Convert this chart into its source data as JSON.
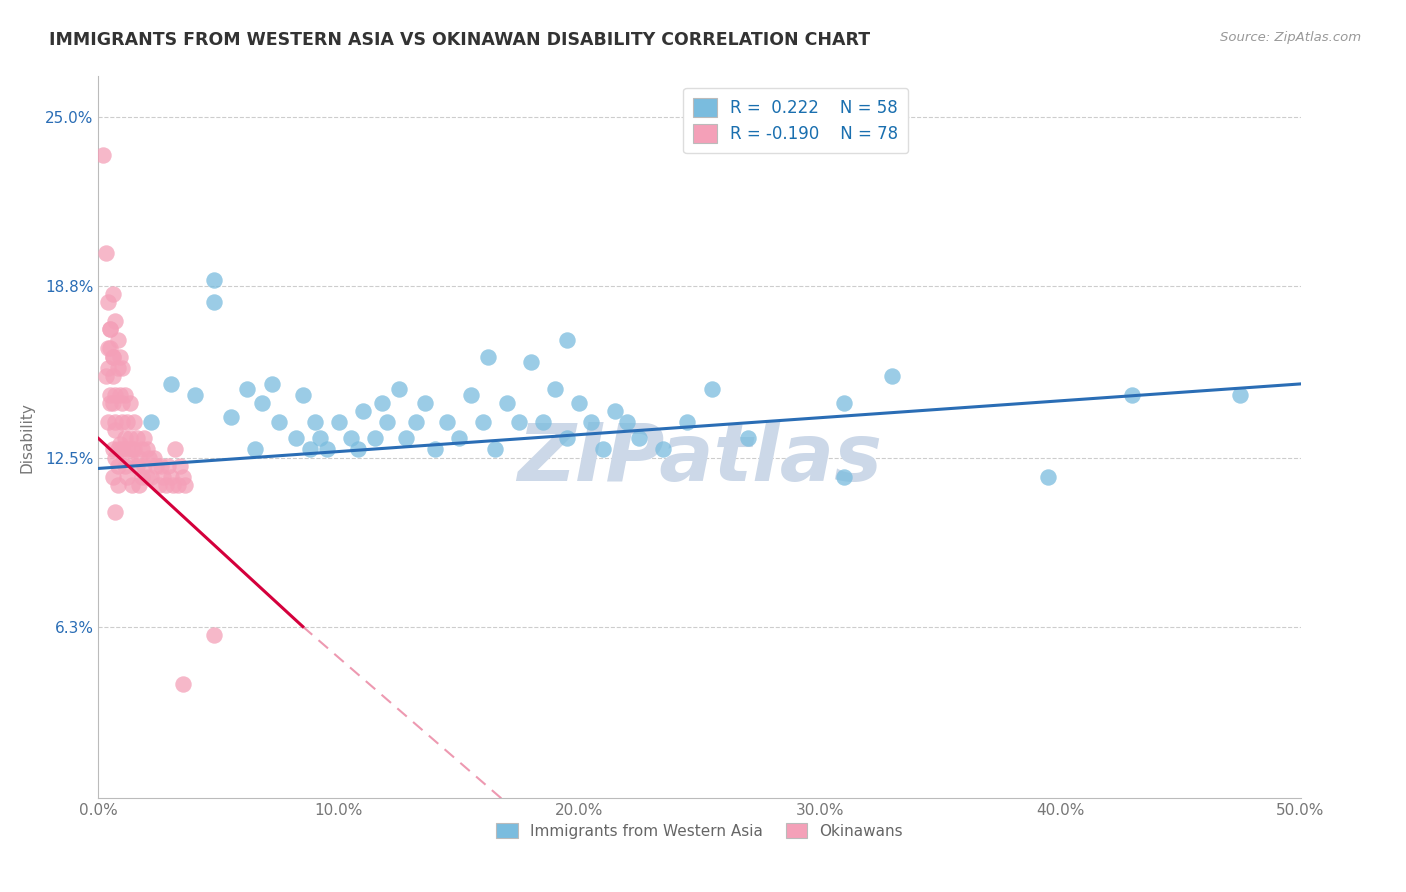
{
  "title": "IMMIGRANTS FROM WESTERN ASIA VS OKINAWAN DISABILITY CORRELATION CHART",
  "source": "Source: ZipAtlas.com",
  "xlabel_blue": "Immigrants from Western Asia",
  "xlabel_pink": "Okinawans",
  "ylabel": "Disability",
  "xmin": 0.0,
  "xmax": 0.5,
  "ymin": 0.0,
  "ymax": 0.265,
  "yticks": [
    0.063,
    0.125,
    0.188,
    0.25
  ],
  "ytick_labels": [
    "6.3%",
    "12.5%",
    "18.8%",
    "25.0%"
  ],
  "xticks": [
    0.0,
    0.1,
    0.2,
    0.3,
    0.4,
    0.5
  ],
  "xtick_labels": [
    "0.0%",
    "10.0%",
    "20.0%",
    "30.0%",
    "40.0%",
    "50.0%"
  ],
  "blue_color": "#7abcde",
  "pink_color": "#f4a0b8",
  "blue_line_color": "#2a6db5",
  "pink_line_color": "#d4003c",
  "pink_line_dash": [
    6,
    4
  ],
  "R_blue": 0.222,
  "N_blue": 58,
  "R_pink": -0.19,
  "N_pink": 78,
  "legend_R_color": "#1a6faf",
  "background_color": "#ffffff",
  "grid_color": "#c8c8c8",
  "watermark_text": "ZIPatlas",
  "watermark_color": "#ccd8e8",
  "blue_x": [
    0.022,
    0.03,
    0.04,
    0.048,
    0.048,
    0.055,
    0.062,
    0.065,
    0.068,
    0.072,
    0.075,
    0.082,
    0.085,
    0.088,
    0.09,
    0.092,
    0.095,
    0.1,
    0.105,
    0.108,
    0.11,
    0.115,
    0.118,
    0.12,
    0.125,
    0.128,
    0.132,
    0.136,
    0.14,
    0.145,
    0.15,
    0.155,
    0.16,
    0.165,
    0.17,
    0.175,
    0.18,
    0.185,
    0.19,
    0.195,
    0.2,
    0.205,
    0.21,
    0.215,
    0.22,
    0.225,
    0.235,
    0.245,
    0.255,
    0.27,
    0.162,
    0.195,
    0.31,
    0.33,
    0.31,
    0.395,
    0.43,
    0.475
  ],
  "blue_y": [
    0.138,
    0.152,
    0.148,
    0.19,
    0.182,
    0.14,
    0.15,
    0.128,
    0.145,
    0.152,
    0.138,
    0.132,
    0.148,
    0.128,
    0.138,
    0.132,
    0.128,
    0.138,
    0.132,
    0.128,
    0.142,
    0.132,
    0.145,
    0.138,
    0.15,
    0.132,
    0.138,
    0.145,
    0.128,
    0.138,
    0.132,
    0.148,
    0.138,
    0.128,
    0.145,
    0.138,
    0.16,
    0.138,
    0.15,
    0.132,
    0.145,
    0.138,
    0.128,
    0.142,
    0.138,
    0.132,
    0.128,
    0.138,
    0.15,
    0.132,
    0.162,
    0.168,
    0.118,
    0.155,
    0.145,
    0.118,
    0.148,
    0.148
  ],
  "pink_x": [
    0.002,
    0.003,
    0.004,
    0.005,
    0.005,
    0.006,
    0.006,
    0.006,
    0.007,
    0.007,
    0.007,
    0.008,
    0.008,
    0.008,
    0.009,
    0.009,
    0.009,
    0.01,
    0.01,
    0.01,
    0.01,
    0.011,
    0.011,
    0.011,
    0.012,
    0.012,
    0.012,
    0.013,
    0.013,
    0.013,
    0.014,
    0.014,
    0.015,
    0.015,
    0.016,
    0.016,
    0.017,
    0.017,
    0.018,
    0.018,
    0.019,
    0.019,
    0.02,
    0.02,
    0.021,
    0.022,
    0.023,
    0.024,
    0.025,
    0.026,
    0.027,
    0.028,
    0.029,
    0.03,
    0.031,
    0.032,
    0.033,
    0.034,
    0.035,
    0.036,
    0.004,
    0.005,
    0.006,
    0.006,
    0.007,
    0.007,
    0.008,
    0.003,
    0.004,
    0.004,
    0.005,
    0.005,
    0.006,
    0.006,
    0.007,
    0.048,
    0.008,
    0.035
  ],
  "pink_y": [
    0.236,
    0.2,
    0.182,
    0.172,
    0.165,
    0.162,
    0.155,
    0.185,
    0.138,
    0.148,
    0.175,
    0.158,
    0.168,
    0.128,
    0.148,
    0.162,
    0.13,
    0.128,
    0.138,
    0.158,
    0.145,
    0.132,
    0.148,
    0.122,
    0.138,
    0.128,
    0.118,
    0.132,
    0.145,
    0.125,
    0.128,
    0.115,
    0.138,
    0.128,
    0.122,
    0.132,
    0.125,
    0.115,
    0.128,
    0.118,
    0.122,
    0.132,
    0.128,
    0.118,
    0.125,
    0.118,
    0.125,
    0.122,
    0.115,
    0.122,
    0.118,
    0.115,
    0.122,
    0.118,
    0.115,
    0.128,
    0.115,
    0.122,
    0.118,
    0.115,
    0.138,
    0.148,
    0.145,
    0.128,
    0.135,
    0.125,
    0.122,
    0.155,
    0.165,
    0.158,
    0.172,
    0.145,
    0.162,
    0.118,
    0.105,
    0.06,
    0.115,
    0.042
  ]
}
